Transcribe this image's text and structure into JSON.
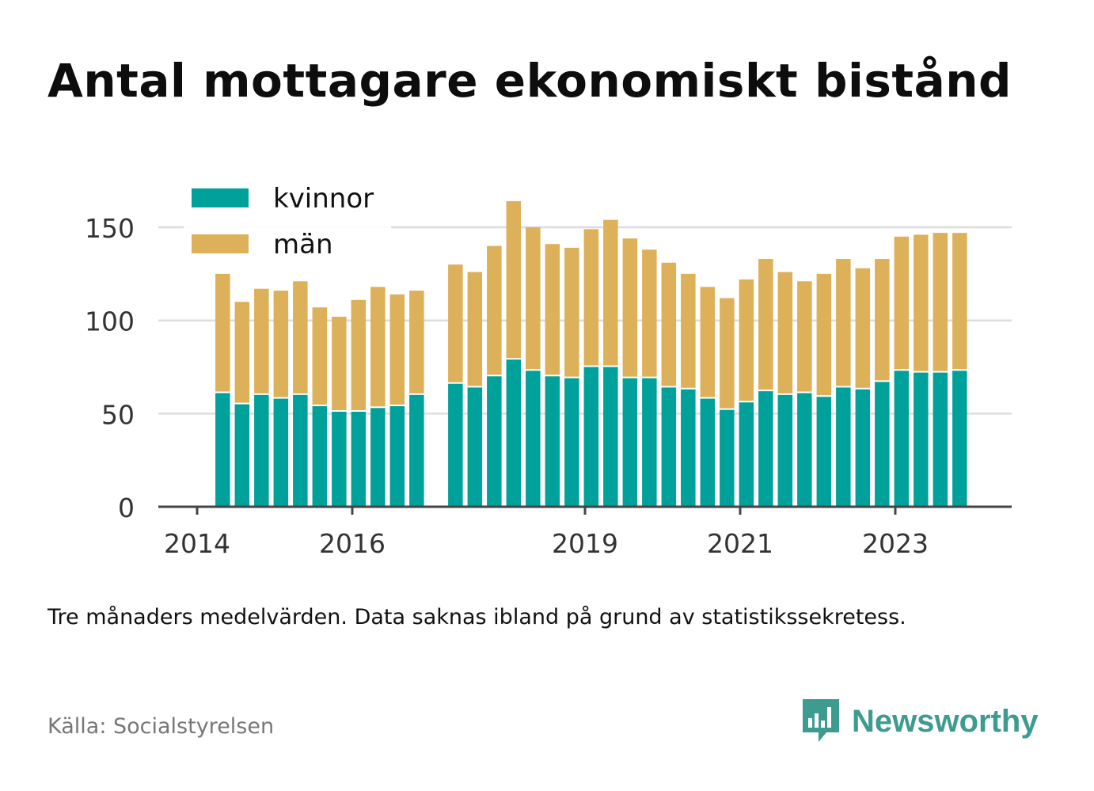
{
  "title": "Antal mottagare ekonomiskt bistånd",
  "note": "Tre månaders medelvärden. Data saknas ibland på grund av statistikssekretess.",
  "source": "Källa: Socialstyrelsen",
  "brand": {
    "name": "Newsworthy",
    "icon": "newsworthy-logo-icon",
    "color": "#3d9b90"
  },
  "colors": {
    "kvinnor": "#00a19a",
    "man": "#ddb05a",
    "grid": "#dddddd",
    "axis": "#444444"
  },
  "chart_data": {
    "type": "bar",
    "stacked": true,
    "ylim": [
      0,
      170
    ],
    "yticks": [
      0,
      50,
      100,
      150
    ],
    "xticks": [
      {
        "label": "2014",
        "x": 2014.0
      },
      {
        "label": "2016",
        "x": 2016.0
      },
      {
        "label": "2019",
        "x": 2019.0
      },
      {
        "label": "2021",
        "x": 2021.0
      },
      {
        "label": "2023",
        "x": 2023.0
      }
    ],
    "xlim": [
      2013.5,
      2024.5
    ],
    "legend": {
      "position": "top-left",
      "entries": [
        "kvinnor",
        "män"
      ]
    },
    "grid": true,
    "x": [
      2014.33,
      2014.58,
      2014.83,
      2015.08,
      2015.33,
      2015.58,
      2015.83,
      2016.08,
      2016.33,
      2016.58,
      2016.83,
      2017.33,
      2017.58,
      2017.83,
      2018.08,
      2018.33,
      2018.58,
      2018.83,
      2019.08,
      2019.33,
      2019.58,
      2019.83,
      2020.08,
      2020.33,
      2020.58,
      2020.83,
      2021.08,
      2021.33,
      2021.58,
      2021.83,
      2022.08,
      2022.33,
      2022.58,
      2022.83,
      2023.08,
      2023.33,
      2023.58,
      2023.83
    ],
    "series": [
      {
        "name": "kvinnor",
        "values": [
          61,
          55,
          60,
          58,
          60,
          54,
          51,
          51,
          53,
          54,
          60,
          66,
          64,
          70,
          79,
          73,
          70,
          69,
          75,
          75,
          69,
          69,
          64,
          63,
          58,
          52,
          56,
          62,
          60,
          61,
          59,
          64,
          63,
          67,
          73,
          72,
          72,
          73
        ]
      },
      {
        "name": "män",
        "values": [
          64,
          55,
          57,
          58,
          61,
          53,
          51,
          60,
          65,
          60,
          56,
          64,
          62,
          70,
          85,
          77,
          71,
          70,
          74,
          79,
          75,
          69,
          67,
          62,
          60,
          60,
          66,
          71,
          66,
          60,
          66,
          69,
          65,
          66,
          72,
          74,
          75,
          74
        ]
      }
    ]
  }
}
